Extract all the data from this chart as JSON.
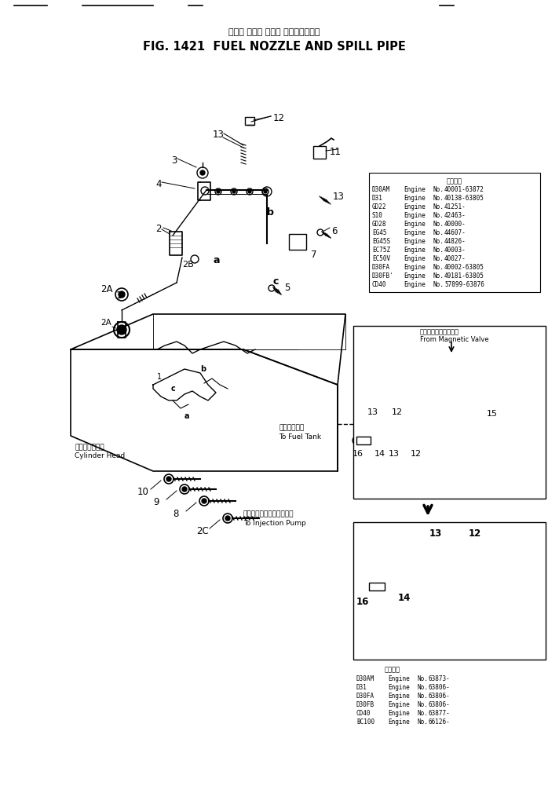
{
  "title_japanese": "フェル ノズル および スピル゙パイプ",
  "title_english": "FIG. 1421  FUEL NOZZLE AND SPILL PIPE",
  "bg_color": "#ffffff",
  "table1_header": "適用年号",
  "table1_rows": [
    [
      "D30AM",
      "Engine",
      "No.",
      "40001-63872"
    ],
    [
      "D31",
      "Engine",
      "No.",
      "40138-63805"
    ],
    [
      "GD22",
      "Engine",
      "No.",
      "41251-"
    ],
    [
      "S10",
      "Engine",
      "No.",
      "42463-"
    ],
    [
      "GD28",
      "Engine",
      "No.",
      "40000-"
    ],
    [
      "EG45",
      "Engine",
      "No.",
      "44607-"
    ],
    [
      "EG45S",
      "Engine",
      "No.",
      "44826-"
    ],
    [
      "EC75Z",
      "Engine",
      "No.",
      "40003-"
    ],
    [
      "EC50V",
      "Engine",
      "No.",
      "40027-"
    ],
    [
      "D30FA",
      "Engine",
      "No.",
      "40002-63805"
    ],
    [
      "D30FB'",
      "Engine",
      "No.",
      "49181-63805"
    ],
    [
      "CD40",
      "Engine",
      "No.",
      "57899-63876"
    ]
  ],
  "table2_header": "適用年号",
  "table2_rows": [
    [
      "D30AM",
      "Engine",
      "No.",
      "63873-"
    ],
    [
      "D31",
      "Engine",
      "No.",
      "63806-"
    ],
    [
      "D30FA",
      "Engine",
      "No.",
      "63806-"
    ],
    [
      "D30FB",
      "Engine",
      "No.",
      "63806-"
    ],
    [
      "CD40",
      "Engine",
      "No.",
      "63877-"
    ],
    [
      "BC100",
      "Engine",
      "No.",
      "66126-"
    ]
  ],
  "magnetic_valve_label_jp": "マグネックバルブから",
  "magnetic_valve_label_en": "From Magnetic Valve",
  "fuel_tank_label_jp": "燃料タンクへ",
  "fuel_tank_label_en": "To Fuel Tank",
  "injection_pump_label_jp": "インジェクションポンプへ",
  "injection_pump_label_en": "To Injection Pump",
  "cylinder_head_label_jp": "シリンダヘッド",
  "cylinder_head_label_en": "Cylinder Head",
  "fig_width": 6.98,
  "fig_height": 10.15,
  "dpi": 100
}
